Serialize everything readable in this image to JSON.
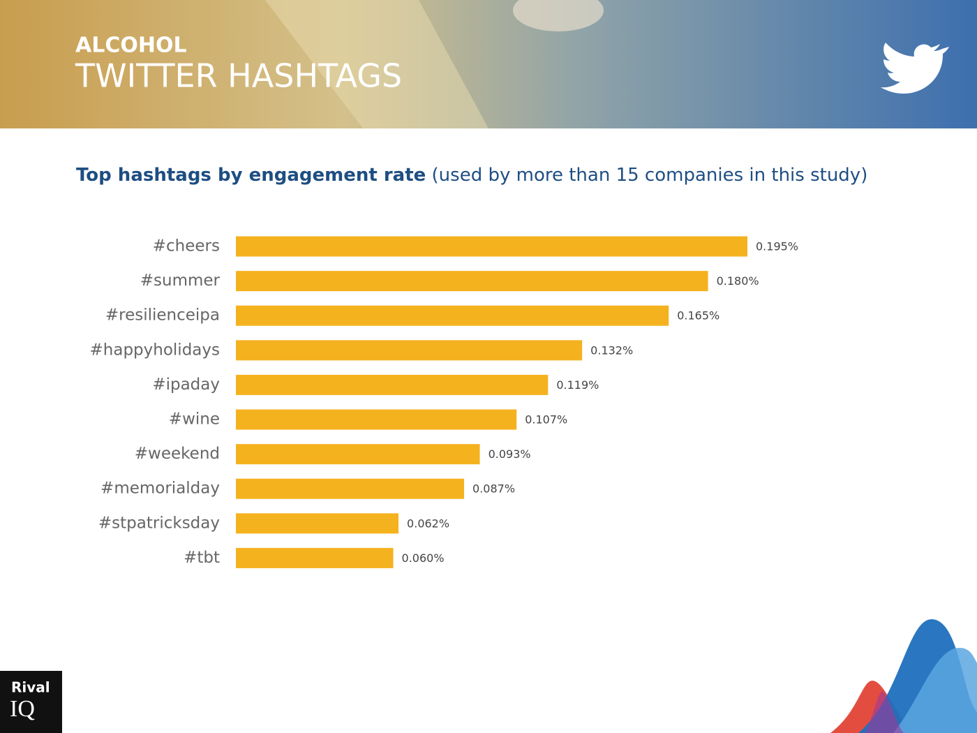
{
  "header": {
    "category": "ALCOHOL",
    "title": "TWITTER HASHTAGS"
  },
  "chart_data": {
    "type": "bar",
    "title": "Top hashtags by engagement rate",
    "subtitle": "(used by more than 15 companies in this study)",
    "categories": [
      "#cheers",
      "#summer",
      "#resilienceipa",
      "#happyholidays",
      "#ipaday",
      "#wine",
      "#weekend",
      "#memorialday",
      "#stpatricksday",
      "#tbt"
    ],
    "values": [
      0.195,
      0.18,
      0.165,
      0.132,
      0.119,
      0.107,
      0.093,
      0.087,
      0.062,
      0.06
    ],
    "value_labels": [
      "0.195%",
      "0.180%",
      "0.165%",
      "0.132%",
      "0.119%",
      "0.107%",
      "0.093%",
      "0.087%",
      "0.062%",
      "0.060%"
    ],
    "color": "#f5b21f"
  },
  "logo": {
    "line1": "Rival",
    "line2": "IQ"
  }
}
